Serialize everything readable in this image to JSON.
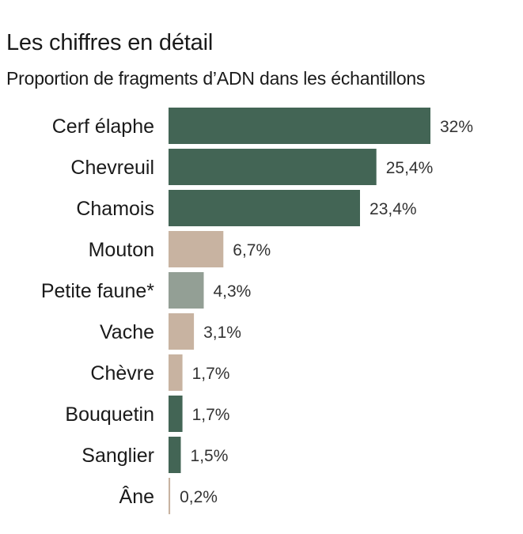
{
  "chart_data": {
    "type": "bar",
    "orientation": "horizontal",
    "title": "Les chiffres en détail",
    "subtitle": "Proportion de fragments d’ADN dans les échantillons",
    "categories": [
      "Cerf élaphe",
      "Chevreuil",
      "Chamois",
      "Mouton",
      "Petite faune*",
      "Vache",
      "Chèvre",
      "Bouquetin",
      "Sanglier",
      "Âne"
    ],
    "values": [
      32,
      25.4,
      23.4,
      6.7,
      4.3,
      3.1,
      1.7,
      1.7,
      1.5,
      0.2
    ],
    "value_labels": [
      "32%",
      "25,4%",
      "23,4%",
      "6,7%",
      "4,3%",
      "3,1%",
      "1,7%",
      "1,7%",
      "1,5%",
      "0,2%"
    ],
    "colors": [
      "#436555",
      "#436555",
      "#436555",
      "#c8b3a1",
      "#939f95",
      "#c8b3a1",
      "#c8b3a1",
      "#436555",
      "#436555",
      "#c8b3a1"
    ],
    "xlim": [
      0,
      32
    ],
    "grid": false,
    "legend": "none"
  }
}
